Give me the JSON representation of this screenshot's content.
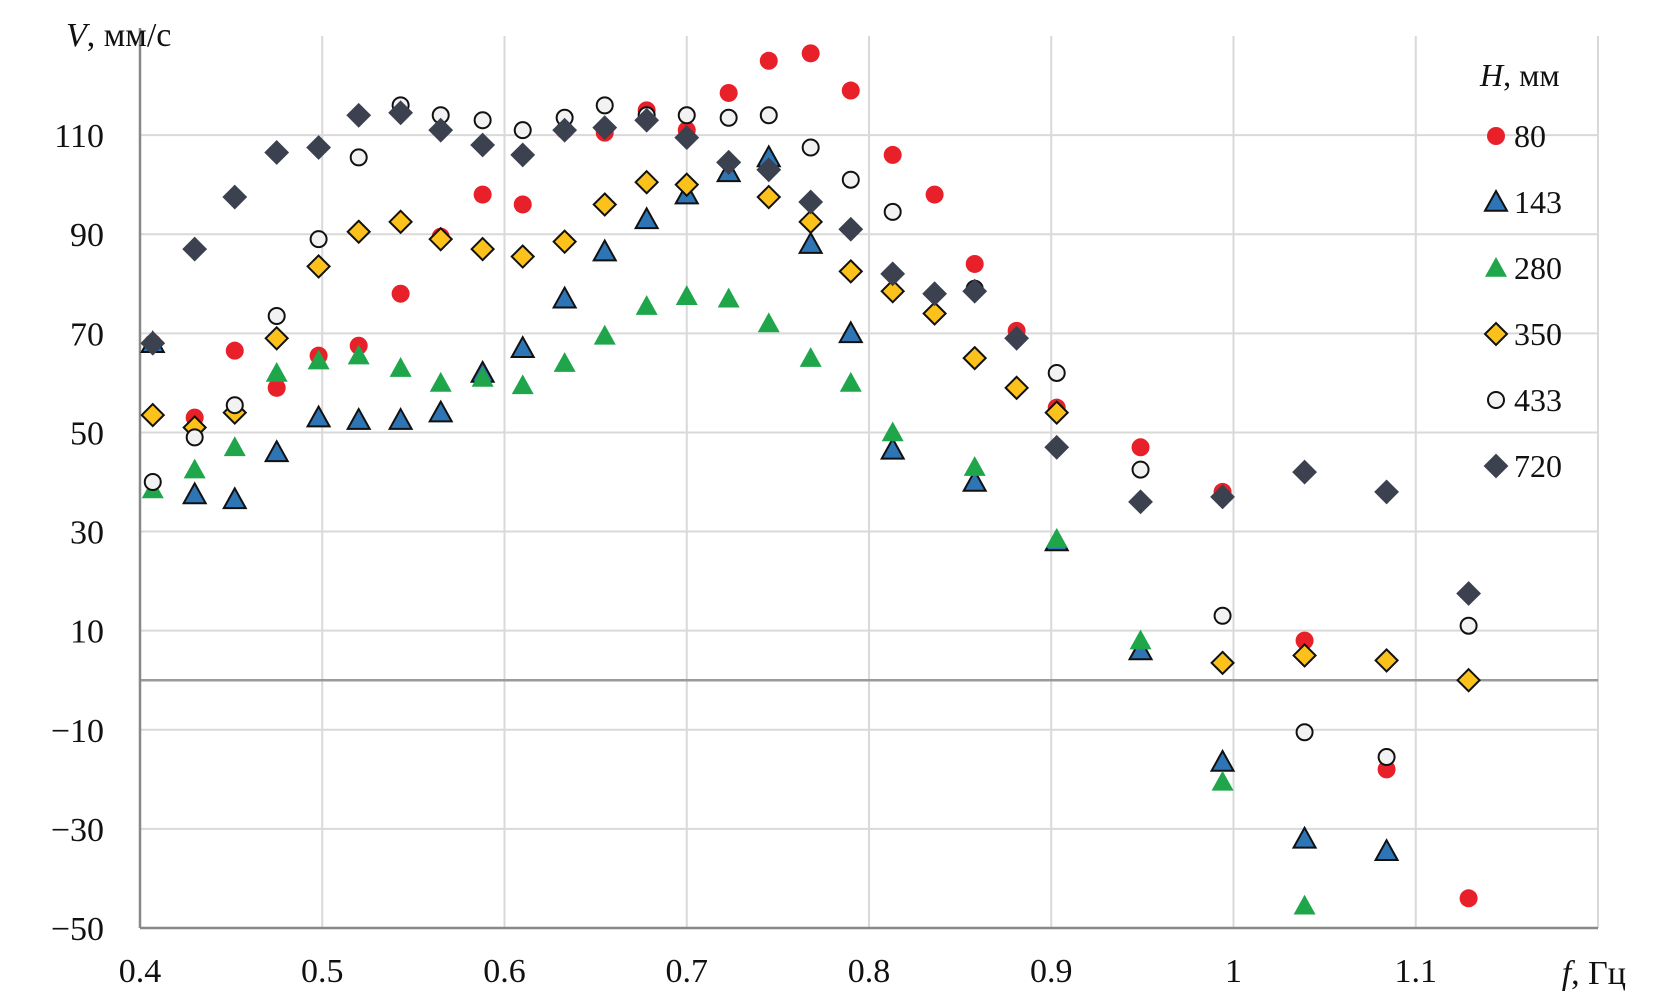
{
  "chart_data": {
    "type": "scatter",
    "title": "",
    "xlabel_var": "f",
    "xlabel_unit": ", Гц",
    "ylabel_var": "V",
    "ylabel_unit": ", мм/с",
    "xlim": [
      0.4,
      1.2
    ],
    "ylim": [
      -50,
      130
    ],
    "xticks": [
      0.4,
      0.5,
      0.6,
      0.7,
      0.8,
      0.9,
      1.0,
      1.1
    ],
    "xtick_labels": [
      "0.4",
      "0.5",
      "0.6",
      "0.7",
      "0.8",
      "0.9",
      "1",
      "1.1"
    ],
    "yticks": [
      -50,
      -30,
      -10,
      10,
      30,
      50,
      70,
      90,
      110
    ],
    "ytick_labels": [
      "−50",
      "−30",
      "−10",
      "10",
      "30",
      "50",
      "70",
      "90",
      "110"
    ],
    "grid": true,
    "legend_title_var": "H",
    "legend_title_unit": ", мм",
    "legend_position": "right",
    "series": [
      {
        "name": "80",
        "marker": "circle-filled",
        "fill": "#e8202a",
        "stroke": "none",
        "points": [
          [
            0.407,
            68
          ],
          [
            0.43,
            53
          ],
          [
            0.452,
            66.5
          ],
          [
            0.475,
            59
          ],
          [
            0.498,
            65.5
          ],
          [
            0.52,
            67.5
          ],
          [
            0.543,
            78
          ],
          [
            0.565,
            89.5
          ],
          [
            0.588,
            98
          ],
          [
            0.61,
            96
          ],
          [
            0.633,
            111
          ],
          [
            0.655,
            110.5
          ],
          [
            0.678,
            115
          ],
          [
            0.7,
            111
          ],
          [
            0.723,
            118.5
          ],
          [
            0.745,
            125
          ],
          [
            0.768,
            126.5
          ],
          [
            0.79,
            119
          ],
          [
            0.813,
            106
          ],
          [
            0.836,
            98
          ],
          [
            0.858,
            84
          ],
          [
            0.881,
            70.5
          ],
          [
            0.903,
            55
          ],
          [
            0.949,
            47
          ],
          [
            0.994,
            38
          ],
          [
            1.039,
            8
          ],
          [
            1.084,
            -18
          ],
          [
            1.129,
            -44
          ]
        ]
      },
      {
        "name": "143",
        "marker": "triangle",
        "fill": "#2e75b6",
        "stroke": "#111111",
        "points": [
          [
            0.407,
            68
          ],
          [
            0.43,
            37.5
          ],
          [
            0.452,
            36.5
          ],
          [
            0.475,
            46
          ],
          [
            0.498,
            53
          ],
          [
            0.52,
            52.5
          ],
          [
            0.543,
            52.5
          ],
          [
            0.565,
            54
          ],
          [
            0.588,
            62
          ],
          [
            0.61,
            67
          ],
          [
            0.633,
            77
          ],
          [
            0.655,
            86.5
          ],
          [
            0.678,
            93
          ],
          [
            0.7,
            98
          ],
          [
            0.723,
            102.5
          ],
          [
            0.745,
            105.5
          ],
          [
            0.768,
            88
          ],
          [
            0.79,
            70
          ],
          [
            0.813,
            46.5
          ],
          [
            0.858,
            40
          ],
          [
            0.903,
            28
          ],
          [
            0.949,
            6
          ],
          [
            0.994,
            -16.5
          ],
          [
            1.039,
            -32
          ],
          [
            1.084,
            -34.5
          ]
        ]
      },
      {
        "name": "280",
        "marker": "triangle",
        "fill": "#1fa64b",
        "stroke": "none",
        "points": [
          [
            0.407,
            38.5
          ],
          [
            0.43,
            42.5
          ],
          [
            0.452,
            47
          ],
          [
            0.475,
            62
          ],
          [
            0.498,
            64.5
          ],
          [
            0.52,
            65.5
          ],
          [
            0.543,
            63
          ],
          [
            0.565,
            60
          ],
          [
            0.588,
            61
          ],
          [
            0.61,
            59.5
          ],
          [
            0.633,
            64
          ],
          [
            0.655,
            69.5
          ],
          [
            0.678,
            75.5
          ],
          [
            0.7,
            77.5
          ],
          [
            0.723,
            77
          ],
          [
            0.745,
            72
          ],
          [
            0.768,
            65
          ],
          [
            0.79,
            60
          ],
          [
            0.813,
            50
          ],
          [
            0.858,
            43
          ],
          [
            0.903,
            28.5
          ],
          [
            0.949,
            8
          ],
          [
            0.994,
            -20.5
          ],
          [
            1.039,
            -45.5
          ]
        ]
      },
      {
        "name": "350",
        "marker": "diamond",
        "fill": "#fcc21b",
        "stroke": "#111111",
        "points": [
          [
            0.407,
            53.5
          ],
          [
            0.43,
            51
          ],
          [
            0.452,
            54
          ],
          [
            0.475,
            69
          ],
          [
            0.498,
            83.5
          ],
          [
            0.52,
            90.5
          ],
          [
            0.543,
            92.5
          ],
          [
            0.565,
            89
          ],
          [
            0.588,
            87
          ],
          [
            0.61,
            85.5
          ],
          [
            0.633,
            88.5
          ],
          [
            0.655,
            96
          ],
          [
            0.678,
            100.5
          ],
          [
            0.7,
            100
          ],
          [
            0.723,
            104.5
          ],
          [
            0.745,
            97.5
          ],
          [
            0.768,
            92.5
          ],
          [
            0.79,
            82.5
          ],
          [
            0.813,
            78.5
          ],
          [
            0.836,
            74
          ],
          [
            0.858,
            65
          ],
          [
            0.881,
            59
          ],
          [
            0.903,
            54
          ],
          [
            0.994,
            3.5
          ],
          [
            1.039,
            5
          ],
          [
            1.084,
            4
          ],
          [
            1.129,
            0
          ]
        ]
      },
      {
        "name": "433",
        "marker": "circle-open",
        "fill": "#f2f2f2",
        "stroke": "#111111",
        "points": [
          [
            0.407,
            40
          ],
          [
            0.43,
            49
          ],
          [
            0.452,
            55.5
          ],
          [
            0.475,
            73.5
          ],
          [
            0.498,
            89
          ],
          [
            0.52,
            105.5
          ],
          [
            0.543,
            116
          ],
          [
            0.565,
            114
          ],
          [
            0.588,
            113
          ],
          [
            0.61,
            111
          ],
          [
            0.633,
            113.5
          ],
          [
            0.655,
            116
          ],
          [
            0.678,
            114
          ],
          [
            0.7,
            114
          ],
          [
            0.723,
            113.5
          ],
          [
            0.745,
            114
          ],
          [
            0.768,
            107.5
          ],
          [
            0.79,
            101
          ],
          [
            0.813,
            94.5
          ],
          [
            0.858,
            79
          ],
          [
            0.903,
            62
          ],
          [
            0.949,
            42.5
          ],
          [
            0.994,
            13
          ],
          [
            1.039,
            -10.5
          ],
          [
            1.084,
            -15.5
          ],
          [
            1.129,
            11
          ]
        ]
      },
      {
        "name": "720",
        "marker": "diamond",
        "fill": "#3c4150",
        "stroke": "#3c4150",
        "points": [
          [
            0.407,
            68
          ],
          [
            0.43,
            87
          ],
          [
            0.452,
            97.5
          ],
          [
            0.475,
            106.5
          ],
          [
            0.498,
            107.5
          ],
          [
            0.52,
            114
          ],
          [
            0.543,
            114.5
          ],
          [
            0.565,
            111
          ],
          [
            0.588,
            108
          ],
          [
            0.61,
            106
          ],
          [
            0.633,
            111
          ],
          [
            0.655,
            111.5
          ],
          [
            0.678,
            113
          ],
          [
            0.7,
            109.5
          ],
          [
            0.723,
            104.5
          ],
          [
            0.745,
            103
          ],
          [
            0.768,
            96.5
          ],
          [
            0.79,
            91
          ],
          [
            0.813,
            82
          ],
          [
            0.836,
            78
          ],
          [
            0.858,
            78.5
          ],
          [
            0.881,
            69
          ],
          [
            0.903,
            47
          ],
          [
            0.949,
            36
          ],
          [
            0.994,
            37
          ],
          [
            1.039,
            42
          ],
          [
            1.084,
            38
          ],
          [
            1.129,
            17.5
          ]
        ]
      }
    ]
  }
}
